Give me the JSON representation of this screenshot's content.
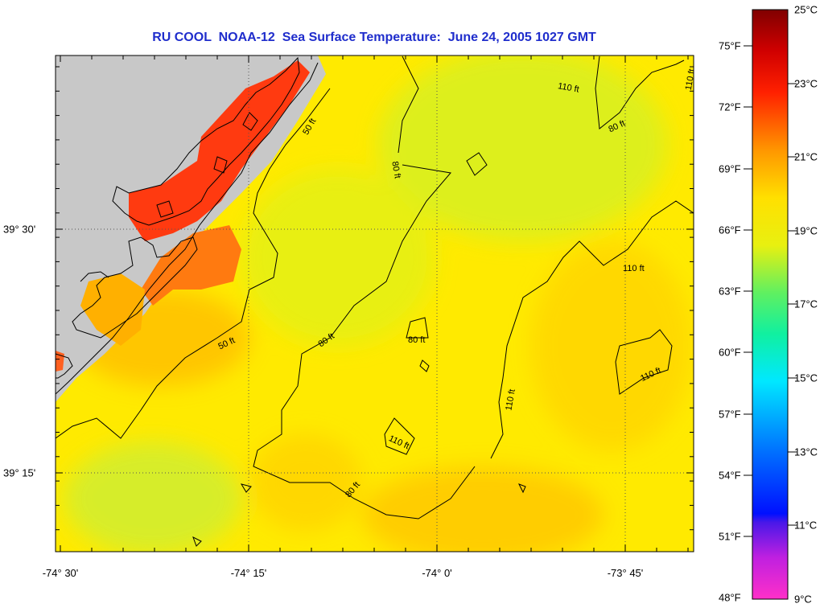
{
  "title": "RU COOL  NOAA-12  Sea Surface Temperature:  June 24, 2005 1027 GMT",
  "axes": {
    "longitude_labels": [
      "-74° 30'",
      "-74° 15'",
      "-74° 0'",
      "-73° 45'"
    ],
    "latitude_labels": [
      "39° 30'",
      "39° 15'"
    ]
  },
  "contour_labels": {
    "c50a": "50 ft",
    "c50b": "50 ft",
    "c80a": "80 ft",
    "c80b": "80 ft",
    "c80c": "80 ft",
    "c80d": "80 ft",
    "c80e": "80 ft",
    "c110a": "110 ft",
    "c110b": "110 ft",
    "c110c": "110 ft",
    "c110d": "110 ft",
    "c110e": "110 ft",
    "c110f": "110 ft"
  },
  "colorbar": {
    "fahrenheit": [
      "75°F",
      "72°F",
      "69°F",
      "66°F",
      "63°F",
      "60°F",
      "57°F",
      "54°F",
      "51°F",
      "48°F"
    ],
    "celsius": [
      "25°C",
      "23°C",
      "21°C",
      "19°C",
      "17°C",
      "15°C",
      "13°C",
      "11°C",
      "9°C"
    ],
    "range_c": [
      9,
      25
    ]
  },
  "colors": {
    "title": "#1f2dcc",
    "land": "#c8c8c8",
    "sst_ocean": "#ffe000",
    "sst_warm_coast": "#ff3a10"
  }
}
